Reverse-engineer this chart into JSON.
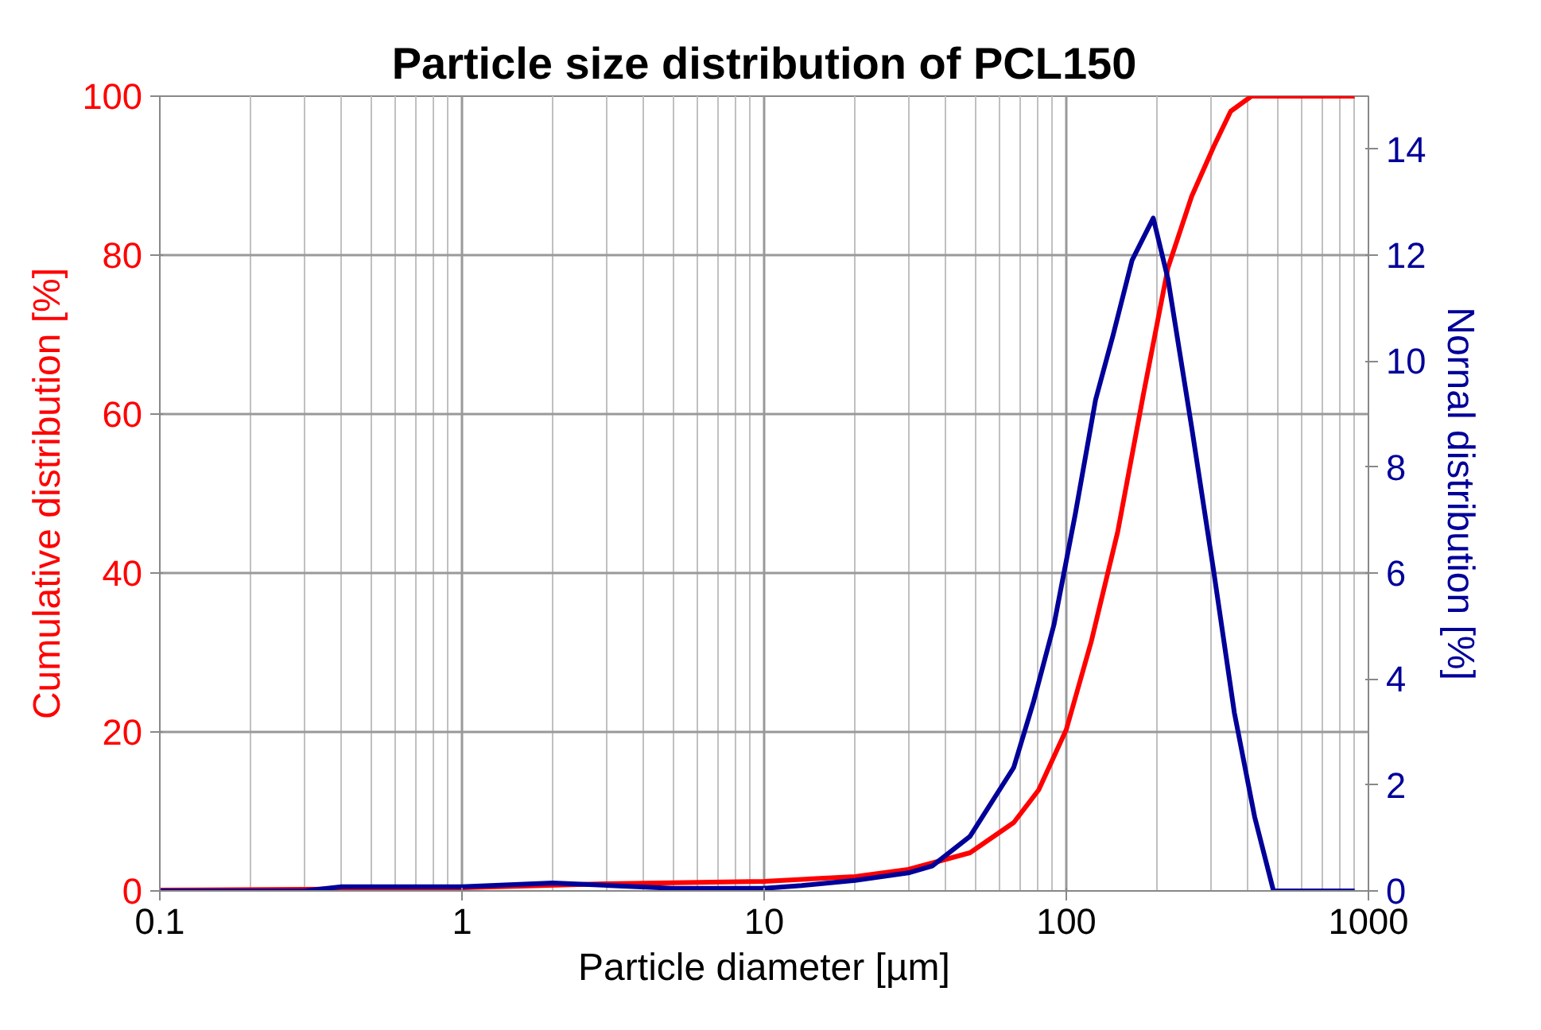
{
  "chart_data": {
    "type": "line",
    "title": "Particle size distribution of PCL150",
    "xlabel": "Particle diameter [µm]",
    "ylabel": "Cumulative distribution [%]",
    "y2label": "Nornal distribution [%]",
    "log": "x",
    "grid": true,
    "marker": "none",
    "line_style": "solid",
    "xlim": [
      0.1,
      1000
    ],
    "xticks": [
      0.1,
      1,
      10,
      100,
      1000
    ],
    "ylim": [
      0,
      100
    ],
    "yticks": [
      0,
      20,
      40,
      60,
      80,
      100
    ],
    "y2lim": [
      0,
      15
    ],
    "y2ticks": [
      0,
      2,
      4,
      6,
      8,
      10,
      12,
      14
    ],
    "series": [
      {
        "color": "#ff0000",
        "x": [
          0.1,
          0.3,
          1,
          3,
          10,
          20,
          30,
          48,
          67,
          81,
          100,
          121,
          148,
          180,
          217,
          260,
          307,
          350,
          410,
          900
        ],
        "values": [
          0.1,
          0.2,
          0.4,
          0.9,
          1.2,
          1.8,
          2.7,
          4.8,
          8.6,
          12.7,
          20.3,
          31.4,
          45.2,
          62.5,
          78.4,
          87.4,
          93.6,
          98.1,
          100,
          100
        ]
      },
      {
        "color": "#000099",
        "axis": "y2",
        "x": [
          0.1,
          0.3,
          0.4,
          1,
          2,
          5,
          10,
          13.3,
          20,
          30,
          36,
          48,
          67,
          78,
          91,
          107,
          125,
          143,
          165,
          194,
          217,
          260,
          307,
          360,
          420,
          485,
          900
        ],
        "values": [
          0,
          0,
          0.08,
          0.08,
          0.15,
          0.05,
          0.05,
          0.1,
          0.2,
          0.34,
          0.47,
          1.03,
          2.33,
          3.58,
          5.02,
          7.1,
          9.27,
          10.5,
          11.9,
          12.7,
          11.55,
          8.75,
          6.06,
          3.36,
          1.4,
          0,
          0
        ]
      }
    ]
  }
}
